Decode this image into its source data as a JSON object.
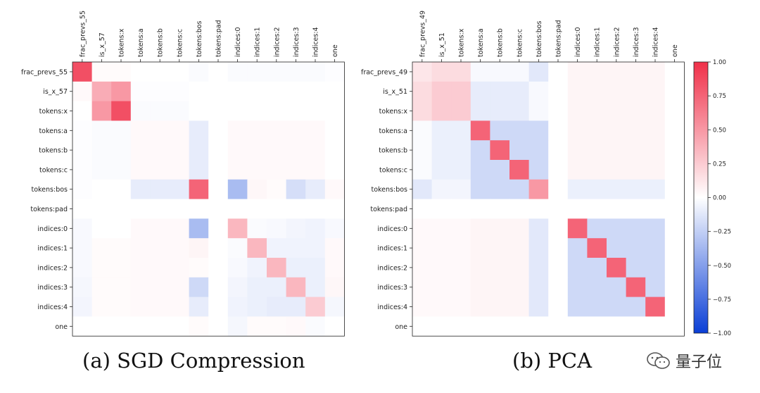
{
  "chart_data": [
    {
      "type": "heatmap",
      "title": "",
      "caption": "(a) SGD Compression",
      "rows": [
        "frac_prevs_55",
        "is_x_57",
        "tokens:x",
        "tokens:a",
        "tokens:b",
        "tokens:c",
        "tokens:bos",
        "tokens:pad",
        "indices:0",
        "indices:1",
        "indices:2",
        "indices:3",
        "indices:4",
        "one"
      ],
      "columns": [
        "frac_prevs_55",
        "is_x_57",
        "tokens:x",
        "tokens:a",
        "tokens:b",
        "tokens:c",
        "tokens:bos",
        "tokens:pad",
        "indices:0",
        "indices:1",
        "indices:2",
        "indices:3",
        "indices:4",
        "one"
      ],
      "values": [
        [
          0.85,
          0.02,
          0.02,
          0.0,
          0.0,
          0.0,
          -0.02,
          0.0,
          -0.02,
          -0.02,
          -0.02,
          -0.02,
          -0.02,
          -0.01
        ],
        [
          0.03,
          0.4,
          0.5,
          -0.01,
          -0.01,
          -0.01,
          0.0,
          0.0,
          0.0,
          0.0,
          0.0,
          0.0,
          0.0,
          0.0
        ],
        [
          0.0,
          0.5,
          0.85,
          -0.02,
          -0.02,
          -0.02,
          0.0,
          0.0,
          0.0,
          0.0,
          0.0,
          0.0,
          0.0,
          0.0
        ],
        [
          -0.01,
          -0.02,
          -0.02,
          0.03,
          0.03,
          0.03,
          -0.1,
          0.0,
          0.03,
          0.03,
          0.03,
          0.03,
          0.03,
          0.0
        ],
        [
          -0.01,
          -0.02,
          -0.02,
          0.03,
          0.03,
          0.03,
          -0.1,
          0.0,
          0.03,
          0.03,
          0.03,
          0.03,
          0.03,
          0.0
        ],
        [
          -0.01,
          -0.02,
          -0.02,
          0.03,
          0.03,
          0.03,
          -0.1,
          0.0,
          0.03,
          0.03,
          0.03,
          0.03,
          0.03,
          0.0
        ],
        [
          -0.01,
          0.0,
          0.0,
          -0.1,
          -0.1,
          -0.1,
          0.75,
          0.0,
          -0.35,
          0.04,
          0.02,
          -0.17,
          -0.1,
          0.03
        ],
        [
          0.0,
          0.0,
          0.0,
          0.0,
          0.0,
          0.0,
          0.0,
          0.0,
          0.0,
          0.0,
          0.0,
          0.0,
          0.0,
          0.0
        ],
        [
          -0.03,
          0.0,
          0.0,
          0.03,
          0.03,
          0.03,
          -0.35,
          0.0,
          0.35,
          -0.02,
          -0.03,
          -0.05,
          -0.06,
          -0.03
        ],
        [
          -0.03,
          0.02,
          0.02,
          0.03,
          0.03,
          0.03,
          0.05,
          0.0,
          -0.02,
          0.35,
          -0.06,
          -0.06,
          -0.06,
          0.03
        ],
        [
          -0.03,
          0.02,
          0.02,
          0.03,
          0.03,
          0.03,
          0.02,
          0.0,
          -0.03,
          -0.06,
          0.35,
          -0.08,
          -0.08,
          0.03
        ],
        [
          -0.04,
          0.02,
          0.02,
          0.03,
          0.03,
          0.03,
          -0.2,
          0.0,
          -0.05,
          -0.08,
          -0.08,
          0.35,
          -0.08,
          0.04
        ],
        [
          -0.05,
          0.02,
          0.02,
          0.03,
          0.03,
          0.03,
          -0.1,
          0.0,
          -0.06,
          -0.08,
          -0.1,
          -0.1,
          0.25,
          -0.04
        ],
        [
          0.0,
          0.0,
          0.0,
          0.0,
          0.0,
          0.0,
          0.02,
          0.0,
          -0.04,
          0.02,
          0.02,
          0.03,
          -0.02,
          0.0
        ]
      ]
    },
    {
      "type": "heatmap",
      "title": "",
      "caption": "(b) PCA",
      "rows": [
        "frac_prevs_49",
        "is_x_51",
        "tokens:x",
        "tokens:a",
        "tokens:b",
        "tokens:c",
        "tokens:bos",
        "tokens:pad",
        "indices:0",
        "indices:1",
        "indices:2",
        "indices:3",
        "indices:4",
        "one"
      ],
      "columns": [
        "frac_prevs_49",
        "is_x_51",
        "tokens:x",
        "tokens:a",
        "tokens:b",
        "tokens:c",
        "tokens:bos",
        "tokens:pad",
        "indices:0",
        "indices:1",
        "indices:2",
        "indices:3",
        "indices:4",
        "one"
      ],
      "values": [
        [
          0.12,
          0.17,
          0.17,
          -0.03,
          -0.03,
          -0.03,
          -0.12,
          0.0,
          0.05,
          0.05,
          0.05,
          0.05,
          0.05,
          0.0
        ],
        [
          0.17,
          0.25,
          0.25,
          -0.1,
          -0.1,
          -0.1,
          -0.03,
          0.0,
          0.05,
          0.05,
          0.05,
          0.05,
          0.05,
          0.0
        ],
        [
          0.17,
          0.25,
          0.25,
          -0.1,
          -0.1,
          -0.1,
          -0.03,
          0.0,
          0.05,
          0.05,
          0.05,
          0.05,
          0.05,
          0.0
        ],
        [
          -0.02,
          -0.08,
          -0.08,
          0.75,
          -0.2,
          -0.2,
          -0.2,
          0.0,
          0.05,
          0.05,
          0.05,
          0.05,
          0.05,
          0.0
        ],
        [
          -0.02,
          -0.08,
          -0.08,
          -0.2,
          0.75,
          -0.2,
          -0.2,
          0.0,
          0.05,
          0.05,
          0.05,
          0.05,
          0.05,
          0.0
        ],
        [
          -0.02,
          -0.08,
          -0.08,
          -0.2,
          -0.2,
          0.75,
          -0.2,
          0.0,
          0.05,
          0.05,
          0.05,
          0.05,
          0.05,
          0.0
        ],
        [
          -0.12,
          -0.05,
          -0.05,
          -0.2,
          -0.2,
          -0.2,
          0.5,
          0.0,
          -0.08,
          -0.08,
          -0.08,
          -0.08,
          -0.08,
          0.0
        ],
        [
          0.0,
          0.0,
          0.0,
          0.0,
          0.0,
          0.0,
          0.0,
          0.0,
          0.0,
          0.0,
          0.0,
          0.0,
          0.0,
          0.0
        ],
        [
          0.03,
          0.03,
          0.03,
          0.05,
          0.05,
          0.05,
          -0.12,
          0.0,
          0.75,
          -0.2,
          -0.2,
          -0.2,
          -0.2,
          0.0
        ],
        [
          0.03,
          0.03,
          0.03,
          0.05,
          0.05,
          0.05,
          -0.12,
          0.0,
          -0.2,
          0.75,
          -0.2,
          -0.2,
          -0.2,
          0.0
        ],
        [
          0.03,
          0.03,
          0.03,
          0.05,
          0.05,
          0.05,
          -0.12,
          0.0,
          -0.2,
          -0.2,
          0.75,
          -0.2,
          -0.2,
          0.0
        ],
        [
          0.03,
          0.03,
          0.03,
          0.05,
          0.05,
          0.05,
          -0.12,
          0.0,
          -0.2,
          -0.2,
          -0.2,
          0.75,
          -0.2,
          0.0
        ],
        [
          0.03,
          0.03,
          0.03,
          0.05,
          0.05,
          0.05,
          -0.12,
          0.0,
          -0.2,
          -0.2,
          -0.2,
          -0.2,
          0.75,
          0.0
        ],
        [
          0.0,
          0.0,
          0.0,
          0.0,
          0.0,
          0.0,
          0.0,
          0.0,
          0.0,
          0.0,
          0.0,
          0.0,
          0.0,
          0.0
        ]
      ]
    }
  ],
  "colorbar": {
    "range": [
      -1.0,
      1.0
    ],
    "ticks": [
      "1.00",
      "0.75",
      "0.50",
      "0.25",
      "0.00",
      "−0.25",
      "−0.50",
      "−0.75",
      "−1.00"
    ],
    "colors": {
      "negative": "#0a3fd6",
      "zero": "#ffffff",
      "positive": "#f03049"
    }
  },
  "watermark": {
    "text": "量子位",
    "icon": "wechat-logo-icon"
  }
}
